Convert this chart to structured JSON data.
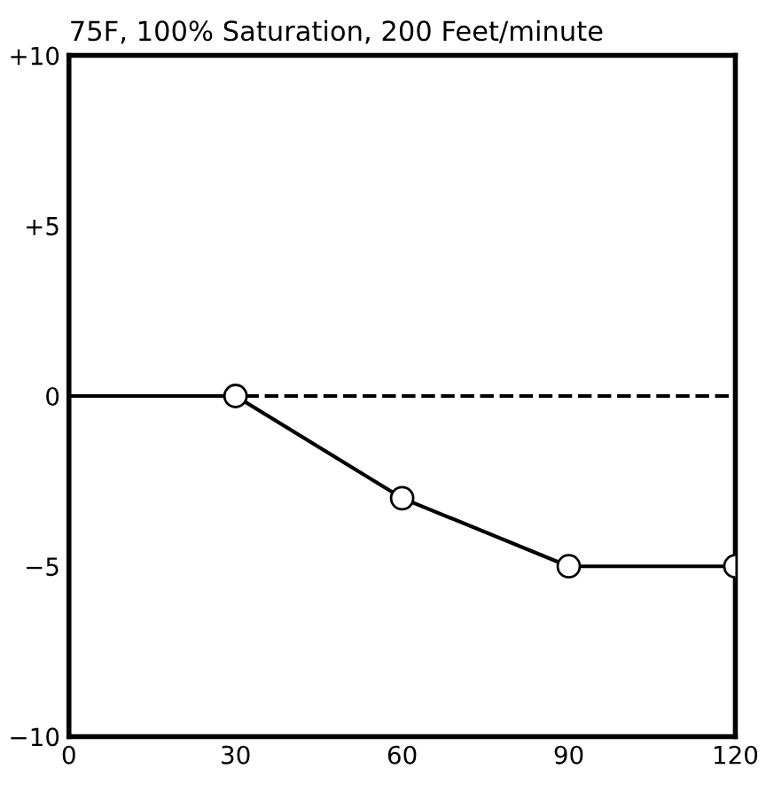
{
  "chart_data": {
    "type": "line",
    "title": "75F, 100% Saturation, 200 Feet/minute",
    "series": [
      {
        "x": [
          0,
          30
        ],
        "values": [
          0,
          0
        ],
        "color": "#000000",
        "line_style": "solid"
      },
      {
        "x": [
          30,
          60,
          90,
          120
        ],
        "values": [
          0,
          -3,
          -5,
          -5
        ],
        "color": "#000000",
        "marker": "circle",
        "line_style": "solid"
      }
    ],
    "xlim": [
      0,
      120
    ],
    "xticks": [
      0,
      30,
      60,
      90,
      120
    ],
    "ylim": [
      -10,
      10
    ],
    "yticks": [
      {
        "value": -10,
        "label": "−10"
      },
      {
        "value": -5,
        "label": "−5"
      },
      0,
      {
        "value": 5,
        "label": "+5"
      },
      {
        "value": 10,
        "label": "+10"
      }
    ],
    "ref_lines": [
      {
        "axis": "y",
        "value": 0,
        "line_style": "dashed",
        "color": "#000000"
      }
    ],
    "grid": false
  }
}
